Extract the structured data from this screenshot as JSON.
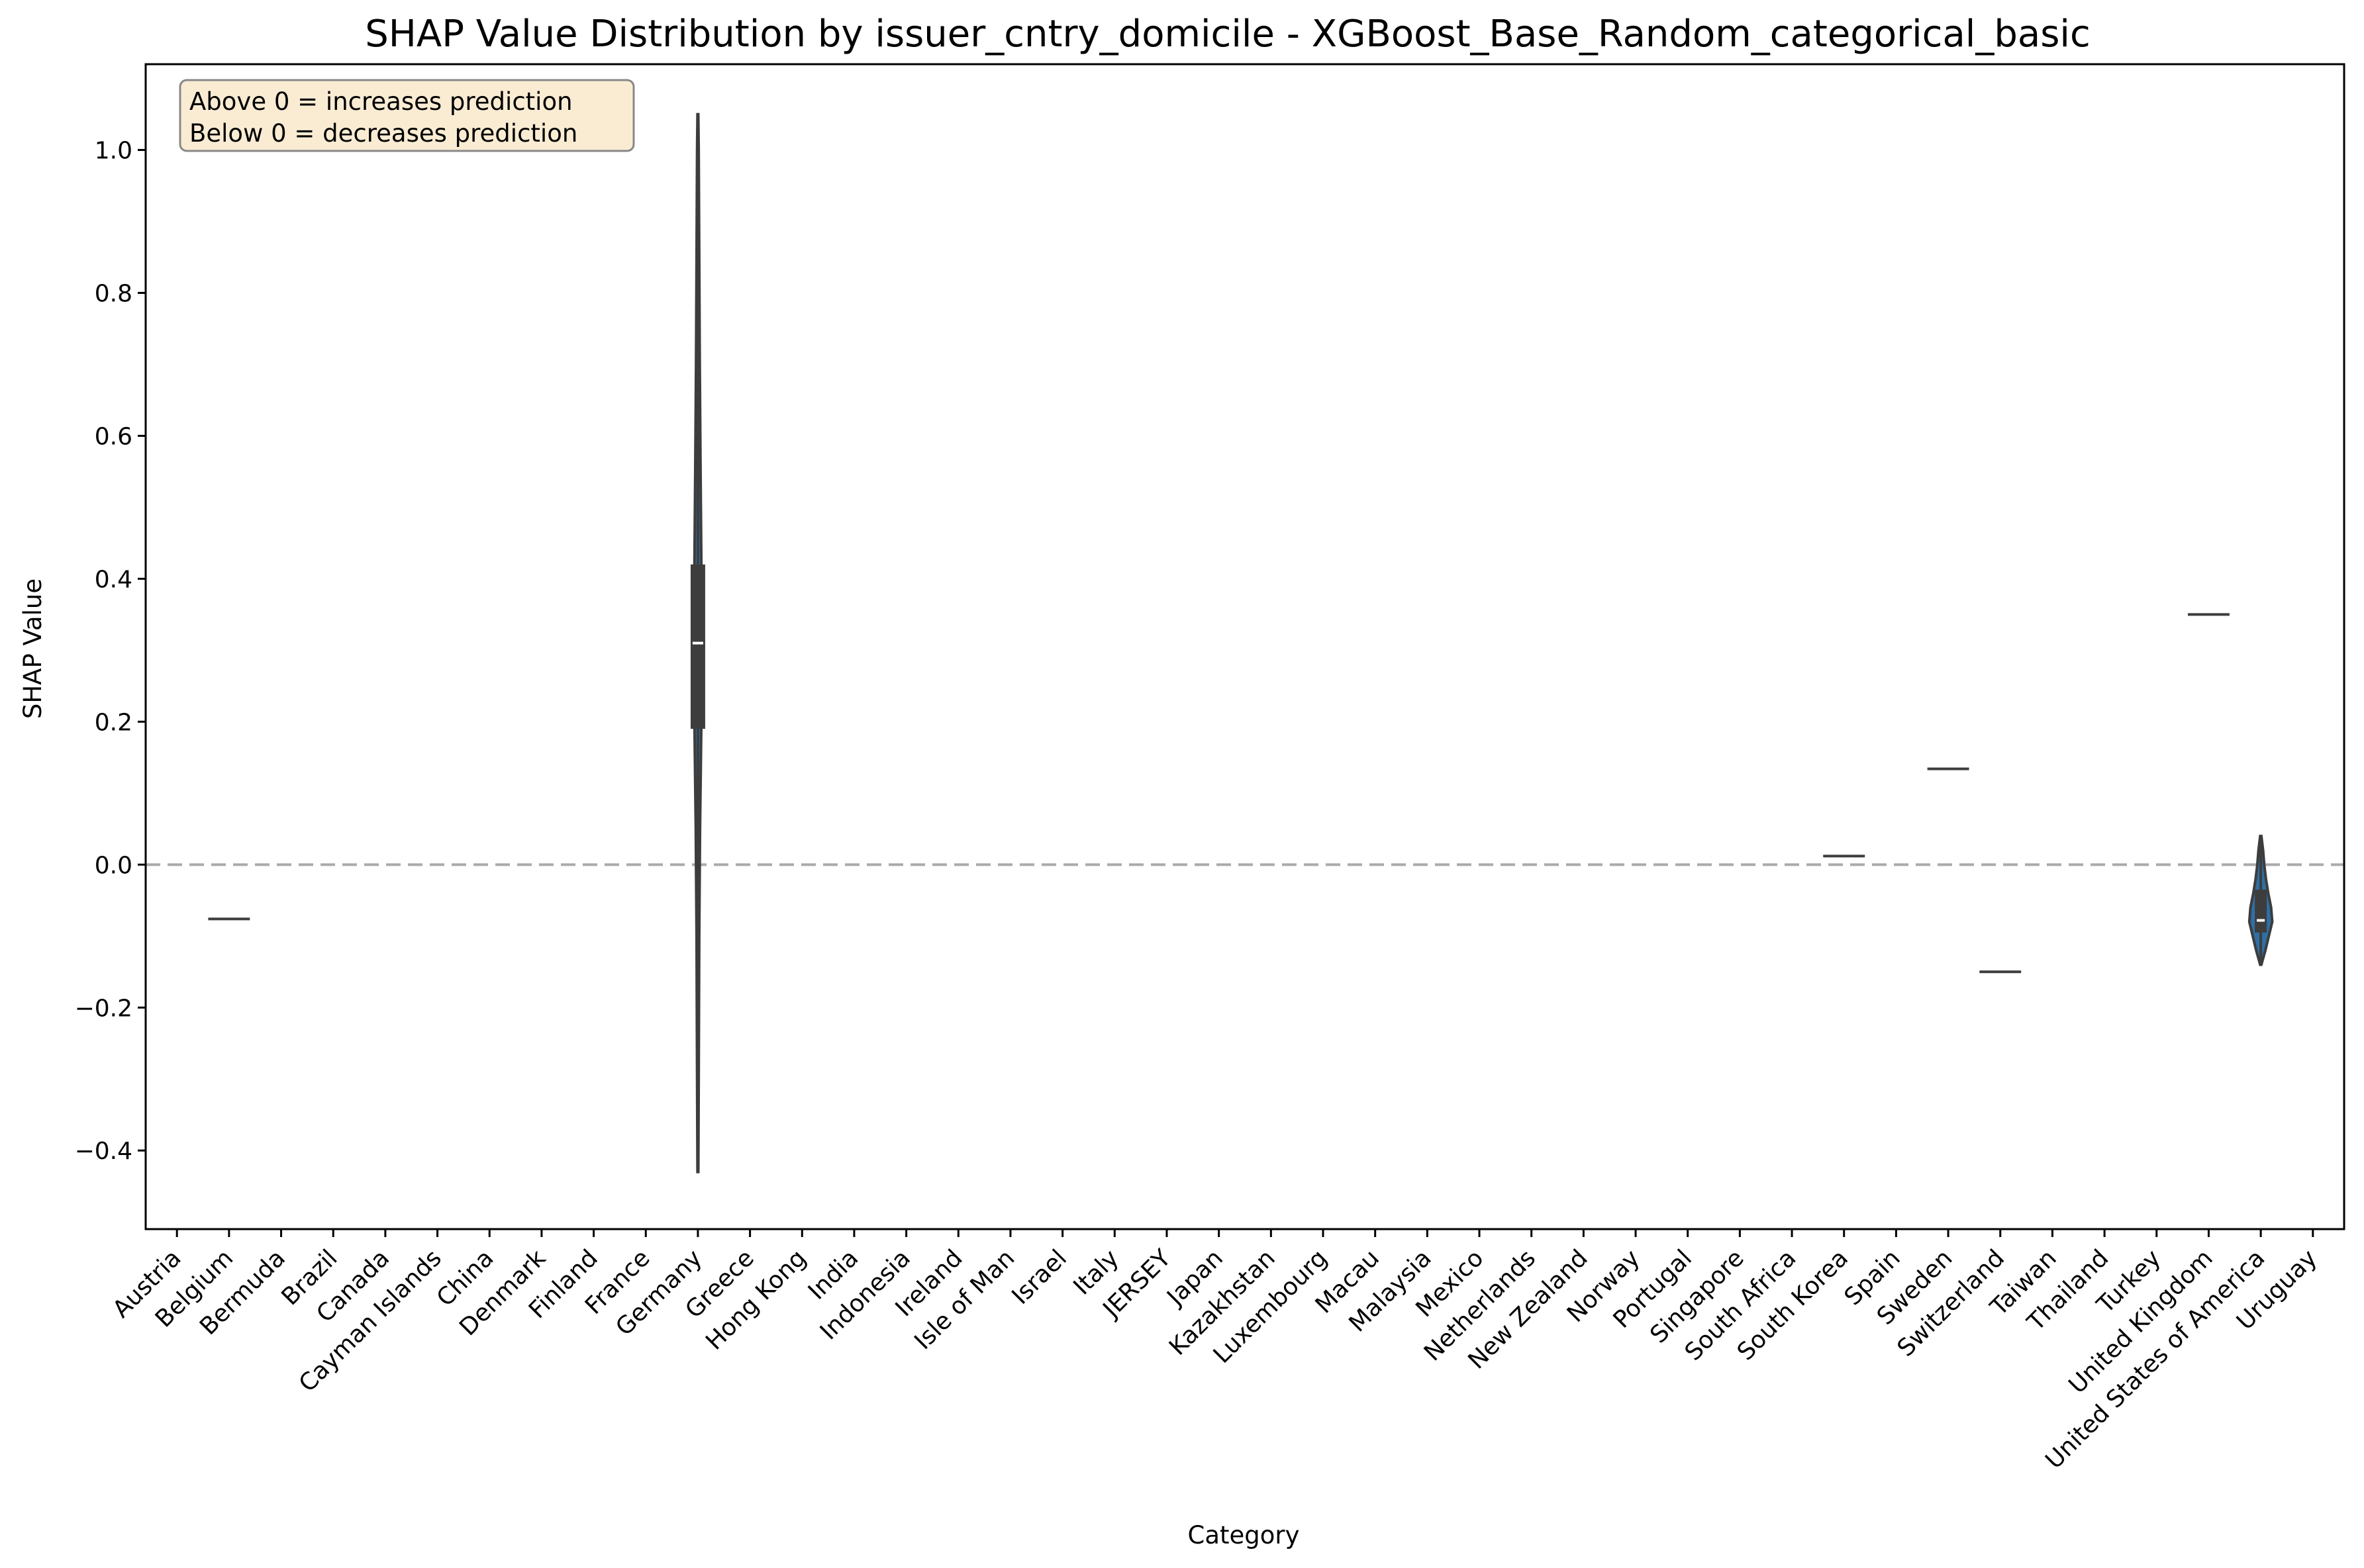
{
  "chart_data": {
    "type": "violin",
    "title": "SHAP Value Distribution by issuer_cntry_domicile - XGBoost_Base_Random_categorical_basic",
    "xlabel": "Category",
    "ylabel": "SHAP Value",
    "ylim": [
      -0.51,
      1.12
    ],
    "yticks": [
      -0.4,
      -0.2,
      0.0,
      0.2,
      0.4,
      0.6,
      0.8,
      1.0
    ],
    "ytick_labels": [
      "−0.4",
      "−0.2",
      "0.0",
      "0.2",
      "0.4",
      "0.6",
      "0.8",
      "1.0"
    ],
    "categories": [
      "Austria",
      "Belgium",
      "Bermuda",
      "Brazil",
      "Canada",
      "Cayman Islands",
      "China",
      "Denmark",
      "Finland",
      "France",
      "Germany",
      "Greece",
      "Hong Kong",
      "India",
      "Indonesia",
      "Ireland",
      "Isle of Man",
      "Israel",
      "Italy",
      "JERSEY",
      "Japan",
      "Kazakhstan",
      "Luxembourg",
      "Macau",
      "Malaysia",
      "Mexico",
      "Netherlands",
      "New Zealand",
      "Norway",
      "Portugal",
      "Singapore",
      "South Africa",
      "South Korea",
      "Spain",
      "Sweden",
      "Switzerland",
      "Taiwan",
      "Thailand",
      "Turkey",
      "United Kingdom",
      "United States of America",
      "Uruguay"
    ],
    "reference_line": {
      "y": 0.0,
      "style": "dashed",
      "color": "#aaaaaa"
    },
    "annotation": {
      "lines": [
        "Above 0 = increases prediction",
        "Below 0 = decreases prediction"
      ],
      "placement": "top-left"
    },
    "violins": [
      {
        "category": "Belgium",
        "kind": "single",
        "value": -0.076
      },
      {
        "category": "Germany",
        "kind": "violin",
        "min": -0.43,
        "max": 1.05,
        "q1": 0.19,
        "median": 0.31,
        "q3": 0.42,
        "profile": [
          [
            -0.43,
            0.3
          ],
          [
            -0.3,
            0.6
          ],
          [
            -0.1,
            1.0
          ],
          [
            0.05,
            1.6
          ],
          [
            0.2,
            2.6
          ],
          [
            0.31,
            3.0
          ],
          [
            0.42,
            2.6
          ],
          [
            0.55,
            2.0
          ],
          [
            0.7,
            1.4
          ],
          [
            0.85,
            1.0
          ],
          [
            1.0,
            0.6
          ],
          [
            1.05,
            0.3
          ]
        ]
      },
      {
        "category": "South Korea",
        "kind": "single",
        "value": 0.012
      },
      {
        "category": "Sweden",
        "kind": "single",
        "value": 0.134
      },
      {
        "category": "Switzerland",
        "kind": "single",
        "value": -0.15
      },
      {
        "category": "United Kingdom",
        "kind": "single",
        "value": 0.35
      },
      {
        "category": "United States of America",
        "kind": "violin",
        "min": -0.14,
        "max": 0.04,
        "q1": -0.095,
        "median": -0.078,
        "q3": -0.035,
        "profile": [
          [
            -0.14,
            0.05
          ],
          [
            -0.12,
            0.4
          ],
          [
            -0.1,
            0.7
          ],
          [
            -0.08,
            1.0
          ],
          [
            -0.06,
            0.9
          ],
          [
            -0.04,
            0.65
          ],
          [
            -0.02,
            0.45
          ],
          [
            0.0,
            0.3
          ],
          [
            0.02,
            0.2
          ],
          [
            0.04,
            0.05
          ]
        ]
      }
    ],
    "colors": {
      "violin_fill": "#2f6fa5",
      "box": "#3d3d3d",
      "median": "#ffffff",
      "flat": "#3d3d3d",
      "annotation_bg": "#f9ecd3",
      "annotation_border": "#888888"
    }
  }
}
